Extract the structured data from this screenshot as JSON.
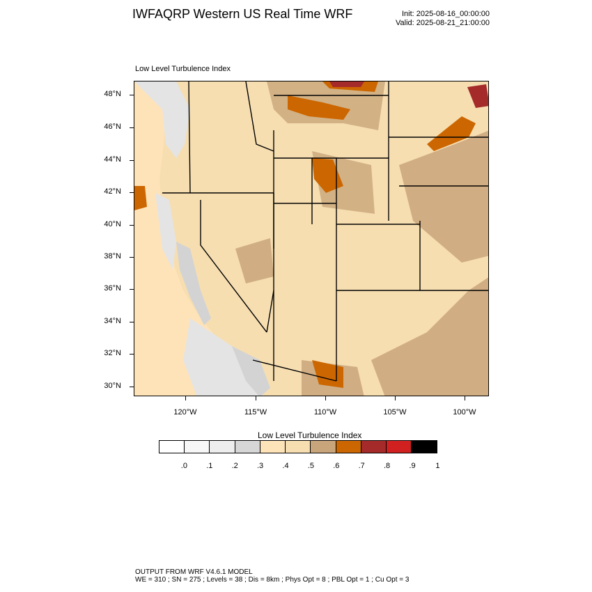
{
  "header": {
    "title": "IWFAQRP Western US Real Time WRF",
    "init": "Init: 2025-08-16_00:00:00",
    "valid": "Valid: 2025-08-21_21:00:00",
    "panel_title": "Low Level Turbulence Index"
  },
  "map": {
    "lat_labels": [
      "48°N",
      "46°N",
      "44°N",
      "42°N",
      "40°N",
      "38°N",
      "36°N",
      "34°N",
      "32°N",
      "30°N"
    ],
    "lon_labels": [
      "120°W",
      "115°W",
      "110°W",
      "105°W",
      "100°W"
    ],
    "colors": {
      "land": "#f6deb1",
      "ocean": "#ffe3b8",
      "light_gray": "#e4e4e4",
      "gray": "#d3d3d3",
      "tan": "#c9a57b",
      "orange": "#cc6600",
      "dark_red": "#a52a2a",
      "border": "#000000"
    }
  },
  "colorbar": {
    "title": "Low Level Turbulence Index",
    "labels": [
      ".0",
      ".1",
      ".2",
      ".3",
      ".4",
      ".5",
      ".6",
      ".7",
      ".8",
      ".9",
      "1"
    ],
    "colors": [
      "#ffffff",
      "#f7f7f7",
      "#ededed",
      "#d6d6d6",
      "#ffe3b8",
      "#f6deb1",
      "#c9a57b",
      "#cc6600",
      "#a52a2a",
      "#d02020",
      "#000000"
    ]
  },
  "footer": {
    "line1": "OUTPUT FROM WRF V4.6.1 MODEL",
    "line2": "WE = 310 ; SN = 275 ; Levels = 38 ; Dis = 8km ; Phys Opt = 8 ; PBL Opt = 1 ; Cu Opt = 3"
  }
}
